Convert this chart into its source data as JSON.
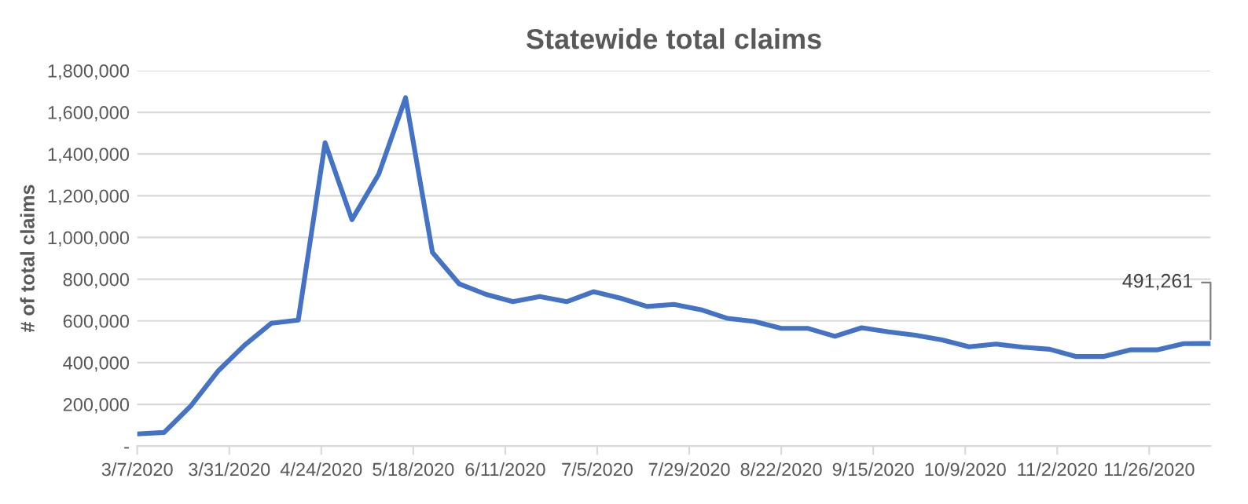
{
  "chart_data": {
    "type": "line",
    "title": "Statewide total claims",
    "ylabel": "# of total claims",
    "x": [
      "2020-03-07",
      "2020-03-14",
      "2020-03-21",
      "2020-03-28",
      "2020-04-04",
      "2020-04-11",
      "2020-04-18",
      "2020-04-25",
      "2020-05-02",
      "2020-05-09",
      "2020-05-16",
      "2020-05-23",
      "2020-05-30",
      "2020-06-06",
      "2020-06-13",
      "2020-06-20",
      "2020-06-27",
      "2020-07-04",
      "2020-07-11",
      "2020-07-18",
      "2020-07-25",
      "2020-08-01",
      "2020-08-08",
      "2020-08-15",
      "2020-08-22",
      "2020-08-29",
      "2020-09-05",
      "2020-09-12",
      "2020-09-19",
      "2020-09-26",
      "2020-10-03",
      "2020-10-10",
      "2020-10-17",
      "2020-10-24",
      "2020-10-31",
      "2020-11-07",
      "2020-11-14",
      "2020-11-21",
      "2020-11-28",
      "2020-12-05",
      "2020-12-12"
    ],
    "series": [
      {
        "color": "#4472c4",
        "values": [
          58000,
          65000,
          193000,
          358000,
          484000,
          589000,
          604000,
          1454000,
          1085000,
          1304000,
          1670000,
          928000,
          777000,
          727000,
          692000,
          717000,
          692000,
          740000,
          709000,
          669000,
          679000,
          654000,
          612000,
          597000,
          564000,
          564000,
          526000,
          567000,
          547000,
          531000,
          509000,
          476000,
          489000,
          474000,
          464000,
          429000,
          429000,
          461000,
          461000,
          491000,
          491261
        ]
      }
    ],
    "annotations": [
      {
        "text": "491,261",
        "x": "2020-12-12",
        "y": 491261
      }
    ],
    "xlim": [
      "2020-03-07",
      "2020-12-12"
    ],
    "xticks": [
      {
        "value": "2020-03-07",
        "label": "3/7/2020"
      },
      {
        "value": "2020-03-31",
        "label": "3/31/2020"
      },
      {
        "value": "2020-04-24",
        "label": "4/24/2020"
      },
      {
        "value": "2020-05-18",
        "label": "5/18/2020"
      },
      {
        "value": "2020-06-11",
        "label": "6/11/2020"
      },
      {
        "value": "2020-07-05",
        "label": "7/5/2020"
      },
      {
        "value": "2020-07-29",
        "label": "7/29/2020"
      },
      {
        "value": "2020-08-22",
        "label": "8/22/2020"
      },
      {
        "value": "2020-09-15",
        "label": "9/15/2020"
      },
      {
        "value": "2020-10-09",
        "label": "10/9/2020"
      },
      {
        "value": "2020-11-02",
        "label": "11/2/2020"
      },
      {
        "value": "2020-11-26",
        "label": "11/26/2020"
      }
    ],
    "ylim": [
      0,
      1800000
    ],
    "yticks": [
      {
        "value": 0,
        "label": "-"
      },
      {
        "value": 200000,
        "label": "200,000"
      },
      {
        "value": 400000,
        "label": "400,000"
      },
      {
        "value": 600000,
        "label": "600,000"
      },
      {
        "value": 800000,
        "label": "800,000"
      },
      {
        "value": 1000000,
        "label": "1,000,000"
      },
      {
        "value": 1200000,
        "label": "1,200,000"
      },
      {
        "value": 1400000,
        "label": "1,400,000"
      },
      {
        "value": 1600000,
        "label": "1,600,000"
      },
      {
        "value": 1800000,
        "label": "1,800,000"
      }
    ],
    "grid": "y",
    "marker": "none",
    "line_style": "solid"
  }
}
